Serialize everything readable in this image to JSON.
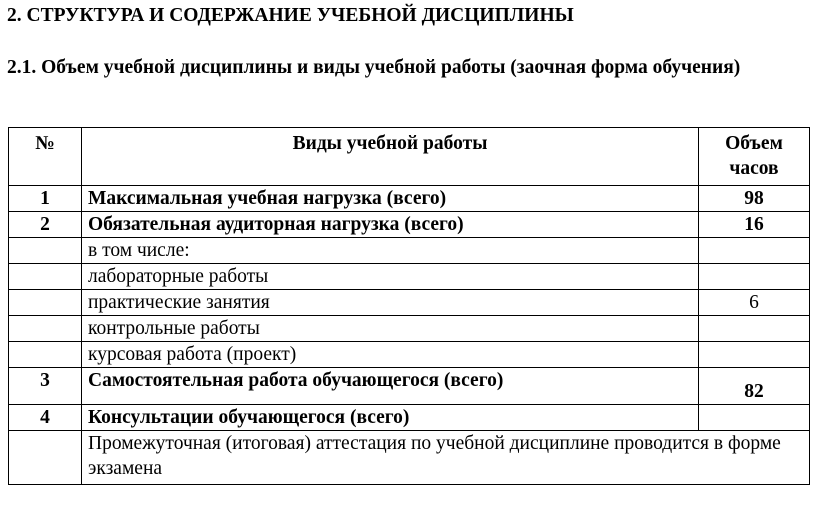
{
  "section_title": "2. СТРУКТУРА И СОДЕРЖАНИЕ УЧЕБНОЙ ДИСЦИПЛИНЫ",
  "subsection_title": "2.1. Объем учебной дисциплины и виды учебной работы (заочная форма обучения)",
  "table": {
    "headers": {
      "num": "№",
      "type": "Виды учебной работы",
      "hours": "Объем часов"
    },
    "rows": [
      {
        "num": "1",
        "type": "Максимальная учебная нагрузка (всего)",
        "hours": "98",
        "bold": true
      },
      {
        "num": "2",
        "type": "Обязательная аудиторная нагрузка (всего)",
        "hours": "16",
        "bold": true
      },
      {
        "num": "",
        "type": "в том числе:",
        "hours": ""
      },
      {
        "num": "",
        "type": "лабораторные работы",
        "hours": ""
      },
      {
        "num": "",
        "type": "практические занятия",
        "hours": "6"
      },
      {
        "num": "",
        "type": "контрольные работы",
        "hours": ""
      },
      {
        "num": "",
        "type": "курсовая работа (проект)",
        "hours": ""
      },
      {
        "num": "3",
        "type": "Самостоятельная работа обучающегося (всего)",
        "hours": "82",
        "bold": true
      },
      {
        "num": "4",
        "type": "Консультации обучающегося (всего)",
        "hours": "",
        "bold": true
      }
    ],
    "footer_note": "Промежуточная (итоговая) аттестация по учебной дисциплине  проводится в форме экзамена"
  }
}
